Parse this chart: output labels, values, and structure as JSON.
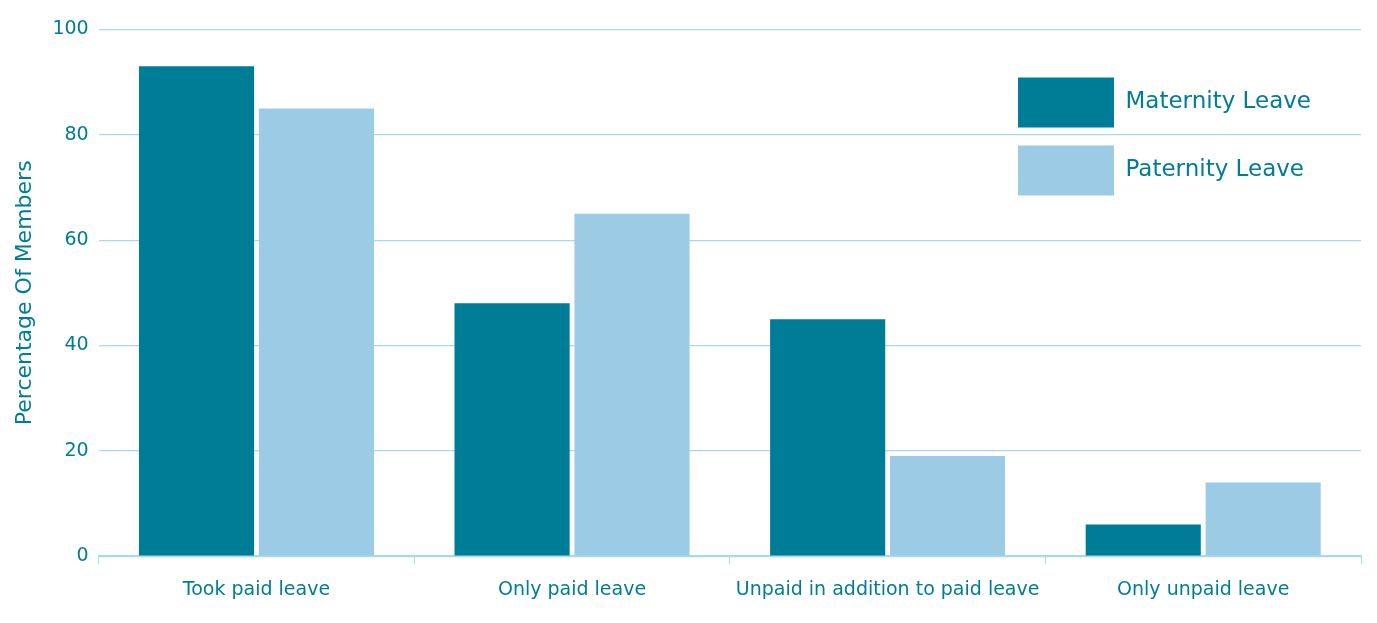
{
  "chart_data": {
    "type": "bar",
    "ylabel": "Percentage Of Members",
    "categories": [
      "Took paid leave",
      "Only paid leave",
      "Unpaid in addition to paid leave",
      "Only unpaid leave"
    ],
    "series": [
      {
        "name": "Maternity Leave",
        "color": "#007d96",
        "values": [
          93,
          48,
          45,
          6
        ]
      },
      {
        "name": "Paternity Leave",
        "color": "#9ccbe6",
        "values": [
          85,
          65,
          19,
          14
        ]
      }
    ],
    "ylim": [
      0,
      100
    ],
    "yticks": [
      0,
      20,
      40,
      60,
      80,
      100
    ],
    "grid": "y",
    "legend": "top right"
  }
}
